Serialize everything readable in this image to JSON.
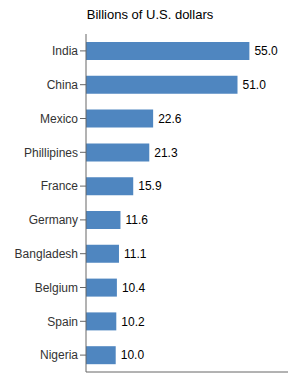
{
  "chart_data": {
    "type": "bar",
    "title": "Billions of U.S. dollars",
    "orientation": "horizontal",
    "categories": [
      "India",
      "China",
      "Mexico",
      "Phillipines",
      "France",
      "Germany",
      "Bangladesh",
      "Belgium",
      "Spain",
      "Nigeria"
    ],
    "values": [
      55.0,
      51.0,
      22.6,
      21.3,
      15.9,
      11.6,
      11.1,
      10.4,
      10.2,
      10.0
    ],
    "value_labels": [
      "55.0",
      "51.0",
      "22.6",
      "21.3",
      "15.9",
      "11.6",
      "11.1",
      "10.4",
      "10.2",
      "10.0"
    ],
    "color": "#4f86c0",
    "xlim": [
      0,
      68
    ],
    "data_labels": true,
    "tick_labels": "y",
    "grid": false
  }
}
